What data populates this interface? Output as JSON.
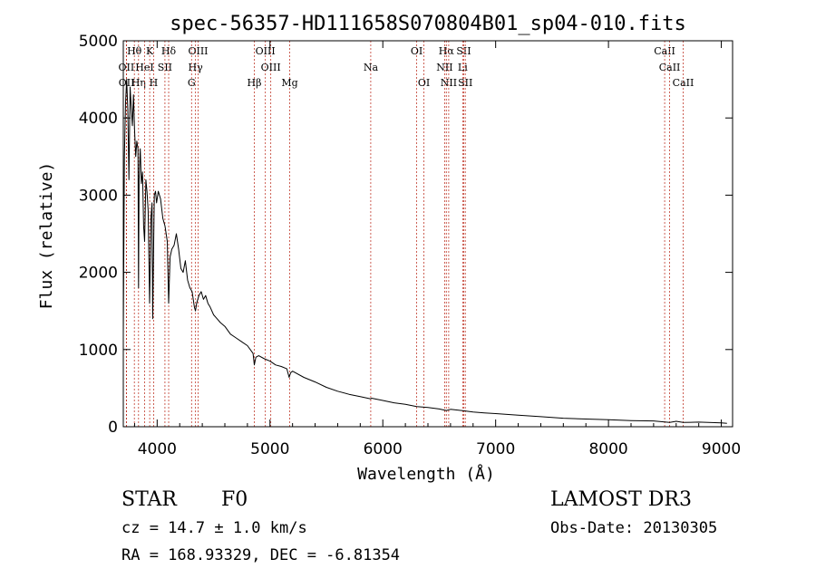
{
  "chart_data": {
    "type": "line",
    "title": "spec-56357-HD111658S070804B01_sp04-010.fits",
    "xlabel": "Wavelength (Å)",
    "ylabel": "Flux (relative)",
    "xlim": [
      3700,
      9100
    ],
    "ylim": [
      0,
      5000
    ],
    "x_ticks": [
      4000,
      5000,
      6000,
      7000,
      8000,
      9000
    ],
    "y_ticks": [
      0,
      1000,
      2000,
      3000,
      4000,
      5000
    ],
    "grid": false,
    "series": [
      {
        "name": "flux",
        "x": [
          3700,
          3710,
          3720,
          3730,
          3740,
          3750,
          3760,
          3770,
          3780,
          3790,
          3800,
          3810,
          3820,
          3830,
          3835,
          3840,
          3850,
          3860,
          3870,
          3880,
          3889,
          3900,
          3910,
          3920,
          3933,
          3945,
          3955,
          3960,
          3968,
          3975,
          3985,
          3995,
          4010,
          4030,
          4050,
          4070,
          4090,
          4102,
          4115,
          4130,
          4150,
          4170,
          4190,
          4210,
          4230,
          4250,
          4270,
          4290,
          4310,
          4330,
          4340,
          4350,
          4370,
          4390,
          4410,
          4430,
          4450,
          4470,
          4500,
          4530,
          4560,
          4600,
          4650,
          4700,
          4750,
          4800,
          4850,
          4861,
          4875,
          4900,
          4950,
          5000,
          5050,
          5100,
          5150,
          5170,
          5183,
          5200,
          5300,
          5400,
          5500,
          5600,
          5700,
          5800,
          5893,
          5900,
          6000,
          6100,
          6200,
          6300,
          6400,
          6500,
          6563,
          6600,
          6700,
          6800,
          6900,
          7000,
          7200,
          7400,
          7600,
          7800,
          8000,
          8200,
          8400,
          8542,
          8600,
          8662,
          8800,
          9000,
          9050
        ],
        "y": [
          1200,
          3500,
          4200,
          4500,
          4100,
          3200,
          4400,
          4150,
          3900,
          4300,
          3850,
          3500,
          3700,
          3600,
          1800,
          3200,
          3600,
          3150,
          3300,
          2600,
          2400,
          3200,
          3050,
          2800,
          1600,
          2700,
          2900,
          1400,
          2300,
          3000,
          3050,
          2900,
          3050,
          2950,
          2700,
          2600,
          2400,
          1600,
          2200,
          2300,
          2350,
          2500,
          2300,
          2050,
          2000,
          2150,
          1900,
          1800,
          1750,
          1550,
          1500,
          1600,
          1700,
          1750,
          1650,
          1700,
          1600,
          1550,
          1450,
          1400,
          1350,
          1300,
          1200,
          1150,
          1100,
          1050,
          950,
          800,
          900,
          920,
          880,
          850,
          800,
          780,
          750,
          640,
          700,
          720,
          640,
          580,
          510,
          460,
          420,
          390,
          360,
          370,
          340,
          310,
          290,
          260,
          250,
          230,
          210,
          225,
          210,
          190,
          180,
          170,
          150,
          130,
          110,
          100,
          90,
          80,
          75,
          55,
          70,
          55,
          60,
          50,
          45
        ]
      }
    ],
    "lines": [
      {
        "label": "Hβ",
        "x": 4861,
        "row": 3
      },
      {
        "label": "OIII",
        "x": 4959,
        "row": 1
      },
      {
        "label": "OIII",
        "x": 5007,
        "row": 2
      },
      {
        "label": "Mg",
        "x": 5175,
        "row": 3
      },
      {
        "label": "Na",
        "x": 5893,
        "row": 2
      },
      {
        "label": "OI",
        "x": 6300,
        "row": 1
      },
      {
        "label": "OI",
        "x": 6364,
        "row": 3
      },
      {
        "label": "Hα",
        "x": 6563,
        "row": 1
      },
      {
        "label": "NII",
        "x": 6548,
        "row": 2
      },
      {
        "label": "NII",
        "x": 6584,
        "row": 3
      },
      {
        "label": "SII",
        "x": 6717,
        "row": 1
      },
      {
        "label": "Li",
        "x": 6708,
        "row": 2
      },
      {
        "label": "SII",
        "x": 6731,
        "row": 3
      },
      {
        "label": "CaII",
        "x": 8498,
        "row": 1
      },
      {
        "label": "CaII",
        "x": 8542,
        "row": 2
      },
      {
        "label": "CaII",
        "x": 8662,
        "row": 3
      },
      {
        "label": "OII",
        "x": 3727,
        "row": 2
      },
      {
        "label": "OII",
        "x": 3729,
        "row": 3
      },
      {
        "label": "Hθ",
        "x": 3798,
        "row": 1
      },
      {
        "label": "Hη",
        "x": 3835,
        "row": 3
      },
      {
        "label": "HeI",
        "x": 3889,
        "row": 2
      },
      {
        "label": "K",
        "x": 3934,
        "row": 1
      },
      {
        "label": "SII",
        "x": 4069,
        "row": 2
      },
      {
        "label": "H",
        "x": 3969,
        "row": 3
      },
      {
        "label": "Hδ",
        "x": 4102,
        "row": 1
      },
      {
        "label": "OIII",
        "x": 4363,
        "row": 1
      },
      {
        "label": "Hγ",
        "x": 4340,
        "row": 2
      },
      {
        "label": "G",
        "x": 4305,
        "row": 3
      }
    ]
  },
  "info": {
    "class": "STAR",
    "subclass": "F0",
    "survey": "LAMOST DR3",
    "cz": "cz = 14.7 ± 1.0 km/s",
    "obs_date": "Obs-Date: 20130305",
    "coords": "RA = 168.93329, DEC =  -6.81354"
  }
}
